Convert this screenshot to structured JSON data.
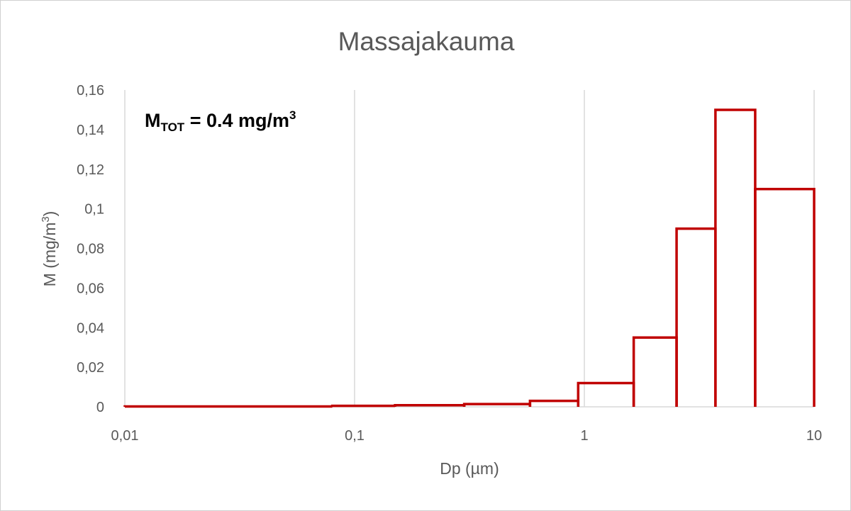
{
  "chart_data": {
    "type": "bar",
    "subtype": "histogram-step",
    "title": "Massajakauma",
    "xlabel": "Dp (µm)",
    "ylabel_main": "M (mg/m",
    "ylabel_sup": "3",
    "ylabel_end": ")",
    "xscale": "log",
    "xlim": [
      0.01,
      10
    ],
    "ylim": [
      0,
      0.16
    ],
    "x_ticks": [
      0.01,
      0.1,
      1,
      10
    ],
    "x_tick_labels": [
      "0,01",
      "0,1",
      "1",
      "10"
    ],
    "y_ticks": [
      0,
      0.02,
      0.04,
      0.06,
      0.08,
      0.1,
      0.12,
      0.14,
      0.16
    ],
    "y_tick_labels": [
      "0",
      "0,02",
      "0,04",
      "0,06",
      "0,08",
      "0,1",
      "0,12",
      "0,14",
      "0,16"
    ],
    "grid": {
      "vertical": true,
      "horizontal": false
    },
    "bins": [
      {
        "from": 0.01,
        "to": 0.08,
        "value": 0.0002
      },
      {
        "from": 0.08,
        "to": 0.15,
        "value": 0.0005
      },
      {
        "from": 0.15,
        "to": 0.3,
        "value": 0.0008
      },
      {
        "from": 0.3,
        "to": 0.58,
        "value": 0.0014
      },
      {
        "from": 0.58,
        "to": 0.94,
        "value": 0.003
      },
      {
        "from": 0.94,
        "to": 1.64,
        "value": 0.012
      },
      {
        "from": 1.64,
        "to": 2.52,
        "value": 0.035
      },
      {
        "from": 2.52,
        "to": 3.72,
        "value": 0.09
      },
      {
        "from": 3.72,
        "to": 5.54,
        "value": 0.15
      },
      {
        "from": 5.54,
        "to": 10,
        "value": 0.11
      }
    ],
    "annotation": {
      "main": "M",
      "sub": "TOT",
      "rest": " = 0.4 mg/m",
      "sup": "3"
    },
    "colors": {
      "series": "#c00000",
      "grid": "#d9d9d9",
      "text": "#595959"
    }
  }
}
